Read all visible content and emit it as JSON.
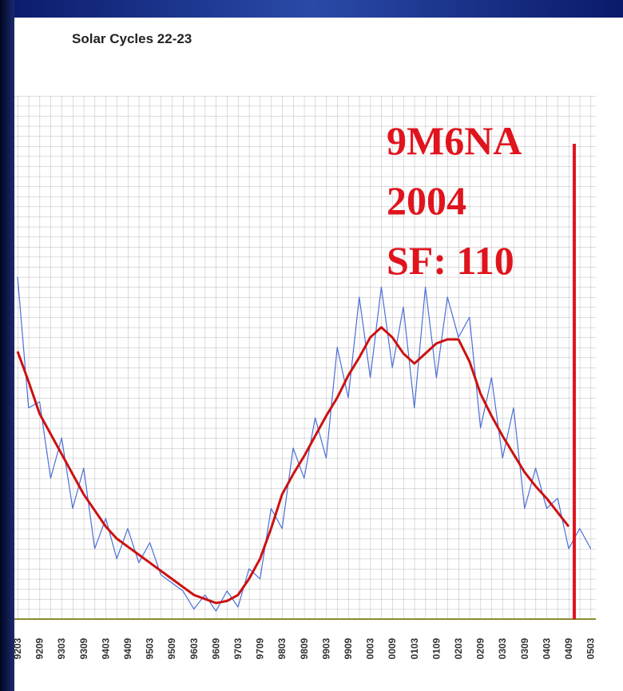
{
  "chart_data": {
    "type": "line",
    "title": "Solar Cycles 22-23",
    "categories": [
      "9203",
      null,
      "9209",
      null,
      "9303",
      null,
      "9309",
      null,
      "9403",
      null,
      "9409",
      null,
      "9503",
      null,
      "9509",
      null,
      "9603",
      null,
      "9609",
      null,
      "9703",
      null,
      "9709",
      null,
      "9803",
      null,
      "9809",
      null,
      "9903",
      null,
      "9909",
      null,
      "0003",
      null,
      "0009",
      null,
      "0103",
      null,
      "0109",
      null,
      "0203",
      null,
      "0209",
      null,
      "0303",
      null,
      "0309",
      null,
      "0403",
      null,
      "0409",
      null,
      "0503"
    ],
    "series": [
      {
        "color": "#4a6fd8",
        "values": [
          170,
          105,
          108,
          70,
          90,
          55,
          75,
          35,
          50,
          30,
          45,
          28,
          38,
          22,
          18,
          14,
          5,
          12,
          4,
          14,
          6,
          25,
          20,
          55,
          45,
          85,
          70,
          100,
          80,
          135,
          110,
          160,
          120,
          165,
          125,
          155,
          105,
          165,
          120,
          160,
          140,
          150,
          95,
          120,
          80,
          105,
          55,
          75,
          55,
          60,
          35,
          45,
          35
        ]
      },
      {
        "color": "#cc1111",
        "values": [
          133,
          118,
          102,
          92,
          82,
          72,
          62,
          54,
          46,
          40,
          36,
          32,
          28,
          24,
          20,
          16,
          12,
          10,
          8,
          9,
          12,
          20,
          30,
          45,
          62,
          72,
          81,
          91,
          101,
          110,
          121,
          130,
          140,
          145,
          140,
          132,
          127,
          132,
          137,
          139,
          139,
          128,
          112,
          101,
          91,
          82,
          73,
          66,
          60,
          53,
          46,
          null,
          null
        ]
      }
    ],
    "ylim": [
      0,
      260
    ],
    "annotations": [
      "9M6NA",
      "2004",
      "SF: 110"
    ]
  }
}
